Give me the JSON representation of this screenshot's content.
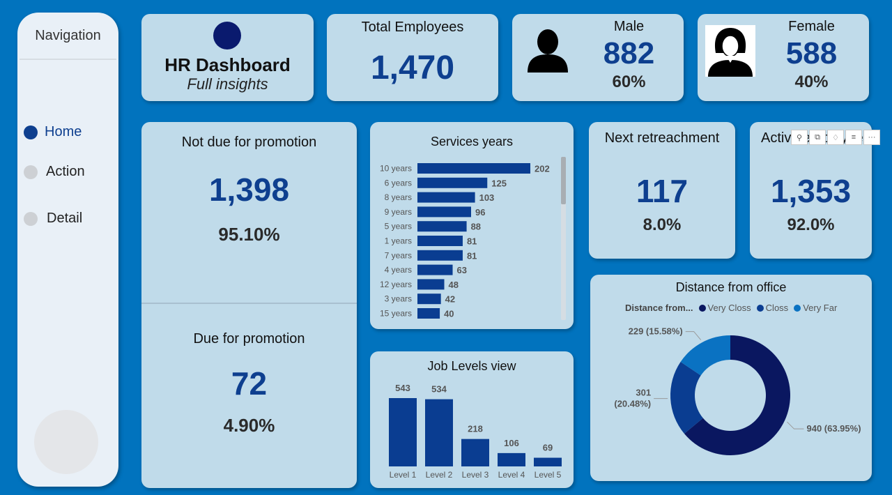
{
  "nav": {
    "title": "Navigation",
    "items": [
      {
        "label": "Home",
        "active": true
      },
      {
        "label": "Action",
        "active": false
      },
      {
        "label": "Detail",
        "active": false
      }
    ]
  },
  "header": {
    "title": "HR Dashboard",
    "subtitle": "Full insights",
    "dot_color": "#0a1a6e"
  },
  "total_employees": {
    "label": "Total Employees",
    "value": "1,470"
  },
  "male": {
    "label": "Male",
    "value": "882",
    "pct": "60%",
    "icon": "male-person-icon"
  },
  "female": {
    "label": "Female",
    "value": "588",
    "pct": "40%",
    "icon": "female-person-icon"
  },
  "not_due": {
    "label": "Not due for promotion",
    "value": "1,398",
    "pct": "95.10%"
  },
  "due": {
    "label": "Due for promotion",
    "value": "72",
    "pct": "4.90%"
  },
  "next_retrenchment": {
    "label": "Next retreachment",
    "value": "117",
    "pct": "8.0%"
  },
  "active": {
    "label": "Active employee",
    "value": "1,353",
    "pct": "92.0%"
  },
  "colors": {
    "accent": "#0e3f8f",
    "bar": "#0a3d91",
    "card": "#c0dbea",
    "background": "#0173be"
  },
  "chart_data": [
    {
      "type": "bar",
      "orientation": "horizontal",
      "title": "Services years",
      "categories": [
        "10 years",
        "6 years",
        "8 years",
        "9 years",
        "5 years",
        "1 years",
        "7 years",
        "4 years",
        "12 years",
        "3 years",
        "15 years"
      ],
      "values": [
        202,
        125,
        103,
        96,
        88,
        81,
        81,
        63,
        48,
        42,
        40
      ],
      "data_labels": [
        "202",
        "125",
        "103",
        "96",
        "88",
        "81",
        "81",
        "63",
        "48",
        "42",
        "40"
      ]
    },
    {
      "type": "bar",
      "title": "Job Levels view",
      "categories": [
        "Level 1",
        "Level 2",
        "Level 3",
        "Level 4",
        "Level 5"
      ],
      "values": [
        543,
        534,
        218,
        106,
        69
      ],
      "data_labels": [
        "543",
        "534",
        "218",
        "106",
        "69"
      ]
    },
    {
      "type": "pie",
      "donut": true,
      "title": "Distance from office",
      "legend_title": "Distance from...",
      "legend_position": "top",
      "series": [
        {
          "name": "Very Closs",
          "value": 940,
          "label": "940 (63.95%)",
          "color": "#0a1760"
        },
        {
          "name": "Closs",
          "value": 301,
          "label": "301 (20.48%)",
          "color": "#0a3d91"
        },
        {
          "name": "Very Far",
          "value": 229,
          "label": "229 (15.58%)",
          "color": "#0a72c2"
        }
      ]
    }
  ],
  "visual_header_icons": [
    "pin-icon",
    "copy-icon",
    "alert-icon",
    "filter-icon",
    "more-options-icon"
  ]
}
